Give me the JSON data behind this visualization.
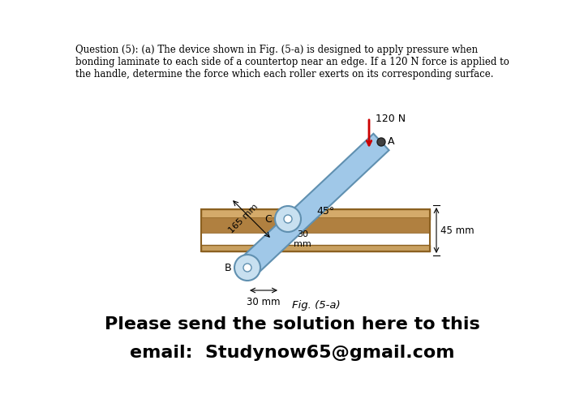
{
  "title_text": "Question (5): (a) The device shown in Fig. (5-a) is designed to apply pressure when\nbonding laminate to each side of a countertop near an edge. If a 120 N force is applied to\nthe handle, determine the force which each roller exerts on its corresponding surface.",
  "bottom_text_line1": "Please send the solution here to this",
  "bottom_text_line2": "email:  Studynow65@gmail.com",
  "fig_label": "Fig. (5-a)",
  "force_label": "120 N",
  "label_165": "165 mm",
  "label_45deg": "45°",
  "label_30mm": "30\nmm",
  "label_45mm": "45 mm",
  "label_30mm_B": "30 mm",
  "label_A": "A",
  "label_B": "B",
  "label_C": "C",
  "bar_color_top": "#c8a060",
  "bar_color_mid": "#b08040",
  "bar_color_bot": "#c8a060",
  "arm_color": "#a0c8e8",
  "arm_outline": "#6090b0",
  "roller_color": "#c8e0f0",
  "roller_outline": "#6090b0",
  "bg_color": "#ffffff",
  "force_arrow_color": "#cc0000",
  "dim_line_color": "#000000",
  "text_color": "#000000"
}
